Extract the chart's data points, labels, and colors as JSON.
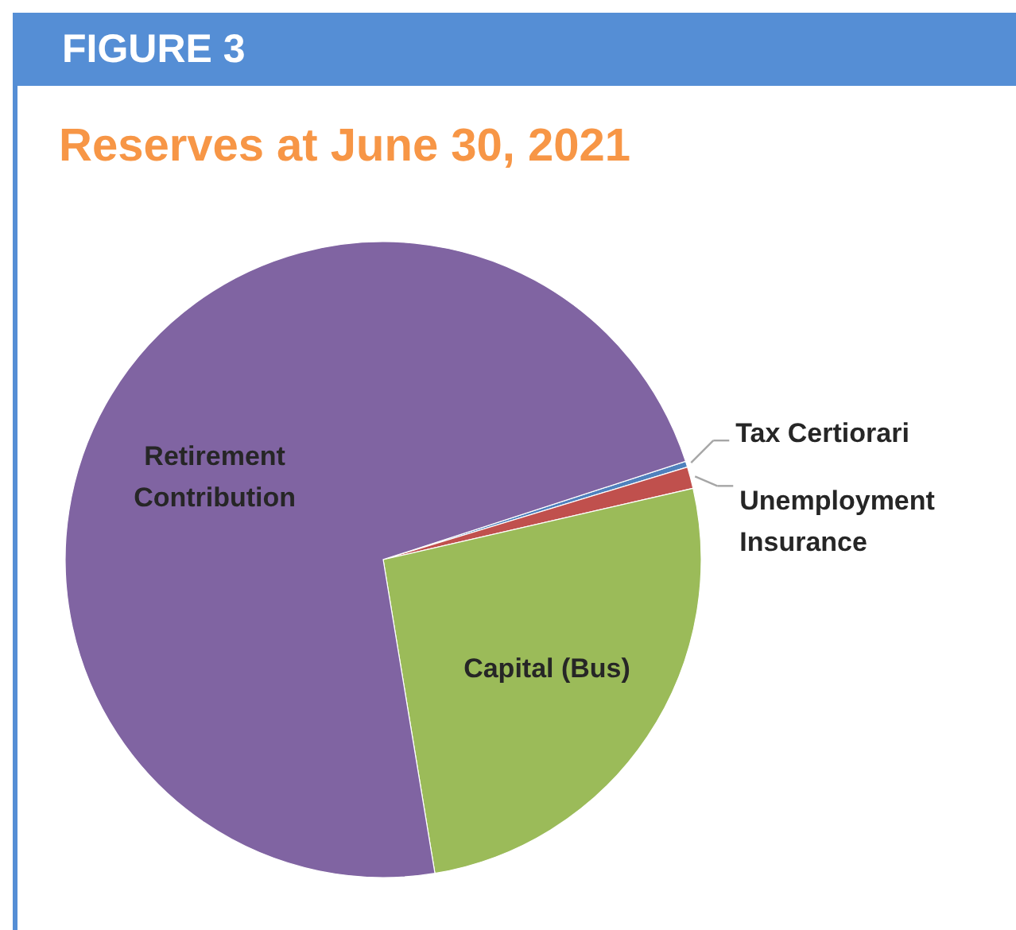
{
  "chart_data": {
    "type": "pie",
    "title": "Reserves at June 30, 2021",
    "annotations": [
      "FIGURE 3"
    ],
    "categories": [
      "Tax Certiorari",
      "Unemployment Insurance",
      "Capital (Bus)",
      "Retirement Contribution"
    ],
    "values": [
      0.3,
      1.1,
      26,
      72.6
    ],
    "colors": [
      "#4f81bd",
      "#c0504d",
      "#9bbb59",
      "#8064a2"
    ]
  }
}
